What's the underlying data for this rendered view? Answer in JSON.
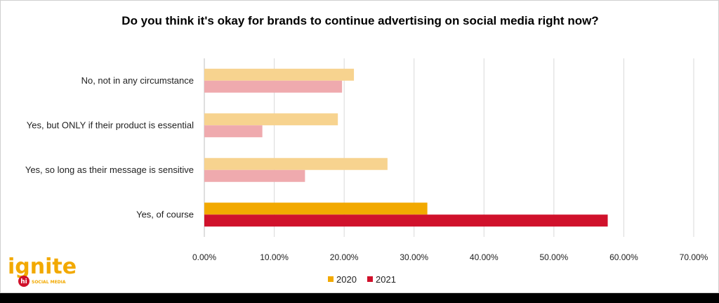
{
  "chart_data": {
    "type": "bar",
    "orientation": "horizontal",
    "title": "Do you think it's okay for brands to continue advertising on social media right now?",
    "xlabel": "",
    "ylabel": "",
    "categories": [
      "No, not in any circumstance",
      "Yes, but ONLY if their product is essential",
      "Yes, so long as their message is sensitive",
      "Yes, of course"
    ],
    "series": [
      {
        "name": "2020",
        "values": [
          0.214,
          0.191,
          0.262,
          0.319
        ]
      },
      {
        "name": "2021",
        "values": [
          0.197,
          0.083,
          0.144,
          0.577
        ]
      }
    ],
    "xlim": [
      0,
      0.7
    ],
    "xticks": [
      0,
      0.1,
      0.2,
      0.3,
      0.4,
      0.5,
      0.6,
      0.7
    ],
    "xtick_labels": [
      "0.00%",
      "10.00%",
      "20.00%",
      "30.00%",
      "40.00%",
      "50.00%",
      "60.00%",
      "70.00%"
    ],
    "grid": true,
    "legend_position": "bottom",
    "colors": {
      "2020_highlight": "#f2a900",
      "2020_muted": "#f7d38f",
      "2021_highlight": "#d0112b",
      "2021_muted": "#efaaae"
    },
    "highlighted_category_index": 3
  },
  "logo": {
    "text": "ignite",
    "badge": "hi",
    "subtext": "SOCIAL MEDIA",
    "color": "#f2a900",
    "badge_color": "#d0112b"
  }
}
